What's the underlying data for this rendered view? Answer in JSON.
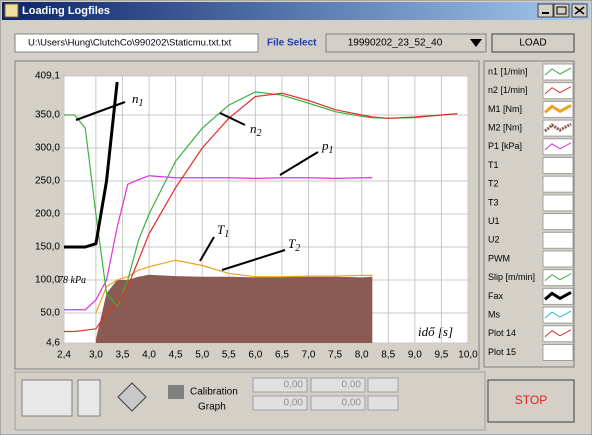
{
  "window": {
    "title": "Loading Logfiles"
  },
  "toolbar": {
    "file_path": "U:\\Users\\Hung\\ClutchCo\\990202\\Staticmu.txt.txt",
    "file_select_label": "File Select",
    "selected_file": "19990202_23_52_40",
    "load_button": "LOAD"
  },
  "chart_data": {
    "type": "line",
    "xlabel": "idő [s]",
    "x": [
      2.4,
      2.6,
      2.8,
      3.0,
      3.2,
      3.4,
      3.6,
      3.8,
      4.0,
      4.5,
      5.0,
      5.5,
      6.0,
      6.5,
      7.0,
      7.5,
      8.0,
      8.2,
      8.5,
      9.0,
      9.5,
      9.8
    ],
    "xlim": [
      2.4,
      10.0
    ],
    "xticks": [
      {
        "value": 2.4,
        "label": "2,4"
      },
      {
        "value": 3.0,
        "label": "3,0"
      },
      {
        "value": 3.5,
        "label": "3,5"
      },
      {
        "value": 4.0,
        "label": "4,0"
      },
      {
        "value": 4.5,
        "label": "4,5"
      },
      {
        "value": 5.0,
        "label": "5,0"
      },
      {
        "value": 5.5,
        "label": "5,5"
      },
      {
        "value": 6.0,
        "label": "6,0"
      },
      {
        "value": 6.5,
        "label": "6,5"
      },
      {
        "value": 7.0,
        "label": "7,0"
      },
      {
        "value": 7.5,
        "label": "7,5"
      },
      {
        "value": 8.0,
        "label": "8,0"
      },
      {
        "value": 8.5,
        "label": "8,5"
      },
      {
        "value": 9.0,
        "label": "9,0"
      },
      {
        "value": 9.5,
        "label": "9,5"
      },
      {
        "value": 10.0,
        "label": "10,0"
      }
    ],
    "ylim": [
      4.6,
      409.1
    ],
    "yticks": [
      {
        "value": 4.6,
        "label": "4,6"
      },
      {
        "value": 50,
        "label": "50,0"
      },
      {
        "value": 100,
        "label": "100,0"
      },
      {
        "value": 150,
        "label": "150,0"
      },
      {
        "value": 200,
        "label": "200,0"
      },
      {
        "value": 250,
        "label": "250,0"
      },
      {
        "value": 300,
        "label": "300,0"
      },
      {
        "value": 350,
        "label": "350,0"
      },
      {
        "value": 409.1,
        "label": "409,1"
      }
    ],
    "grid": true,
    "series": [
      {
        "name": "n1 [1/min]",
        "color": "#3cb043",
        "values": [
          350,
          350,
          330,
          200,
          80,
          60,
          100,
          160,
          200,
          280,
          330,
          365,
          385,
          380,
          368,
          355,
          348,
          346,
          345,
          346,
          350,
          352
        ]
      },
      {
        "name": "n2 [1/min]",
        "color": "#e0302a",
        "values": [
          22,
          22,
          24,
          26,
          50,
          65,
          90,
          130,
          170,
          240,
          300,
          345,
          378,
          383,
          372,
          358,
          350,
          347,
          345,
          347,
          350,
          352
        ]
      },
      {
        "name": "M1 [Nm]",
        "color": "#f0a020",
        "values": [
          null,
          null,
          null,
          50,
          90,
          100,
          105,
          115,
          120,
          130,
          122,
          110,
          105,
          105,
          106,
          106,
          107,
          107,
          null,
          null,
          null,
          null
        ]
      },
      {
        "name": "M2 [Nm]",
        "color": "#8b5a52",
        "values": [
          null,
          null,
          null,
          10,
          80,
          100,
          100,
          105,
          108,
          106,
          105,
          105,
          104,
          105,
          105,
          105,
          104,
          105,
          null,
          null,
          null,
          null
        ]
      },
      {
        "name": "P1 [kPa]",
        "color": "#e030e0",
        "values": [
          55,
          55,
          55,
          70,
          100,
          180,
          245,
          252,
          258,
          255,
          255,
          255,
          254,
          255,
          255,
          254,
          255,
          255,
          null,
          null,
          null,
          null
        ]
      },
      {
        "name": "T1"
      },
      {
        "name": "T2"
      },
      {
        "name": "T3"
      },
      {
        "name": "U1"
      },
      {
        "name": "U2"
      },
      {
        "name": "PWM"
      },
      {
        "name": "Slip [m/min]",
        "color": "#3cb043"
      },
      {
        "name": "Fax",
        "color": "#000000",
        "values": [
          150,
          150,
          150,
          155,
          250,
          400,
          null,
          null,
          null,
          null,
          null,
          null,
          null,
          null,
          null,
          null,
          null,
          null,
          null,
          null,
          null,
          null
        ]
      },
      {
        "name": "Ms",
        "color": "#30b0e0"
      },
      {
        "name": "Plot 14",
        "color": "#e0302a"
      },
      {
        "name": "Plot 15"
      }
    ],
    "annotations": [
      {
        "text": "n",
        "sub": "1"
      },
      {
        "text": "n",
        "sub": "2"
      },
      {
        "text": "p",
        "sub": "1"
      },
      {
        "text": "T",
        "sub": "1"
      },
      {
        "text": "T",
        "sub": "2"
      },
      {
        "text": "78 kPa"
      }
    ]
  },
  "controls": {
    "calibration_label": "Calibration",
    "graph_label": "Graph",
    "fields": [
      "0,00",
      "0,00",
      "0,00",
      "0,00"
    ],
    "stop_button": "STOP"
  }
}
